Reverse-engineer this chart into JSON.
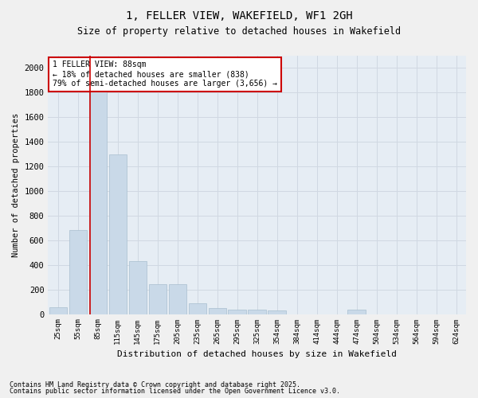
{
  "title": "1, FELLER VIEW, WAKEFIELD, WF1 2GH",
  "subtitle": "Size of property relative to detached houses in Wakefield",
  "xlabel": "Distribution of detached houses by size in Wakefield",
  "ylabel": "Number of detached properties",
  "categories": [
    "25sqm",
    "55sqm",
    "85sqm",
    "115sqm",
    "145sqm",
    "175sqm",
    "205sqm",
    "235sqm",
    "265sqm",
    "295sqm",
    "325sqm",
    "354sqm",
    "384sqm",
    "414sqm",
    "444sqm",
    "474sqm",
    "504sqm",
    "534sqm",
    "564sqm",
    "594sqm",
    "624sqm"
  ],
  "values": [
    55,
    685,
    1820,
    1295,
    430,
    240,
    240,
    85,
    50,
    35,
    35,
    30,
    0,
    0,
    0,
    35,
    0,
    0,
    0,
    0,
    0
  ],
  "bar_color": "#c9d9e8",
  "bar_edge_color": "#a8bfcf",
  "grid_color": "#d0d8e2",
  "background_color": "#e6edf4",
  "fig_background": "#f0f0f0",
  "annotation_title": "1 FELLER VIEW: 88sqm",
  "annotation_line1": "← 18% of detached houses are smaller (838)",
  "annotation_line2": "79% of semi-detached houses are larger (3,656) →",
  "annotation_box_color": "#ffffff",
  "annotation_box_edge": "#cc0000",
  "property_line_color": "#cc0000",
  "ylim": [
    0,
    2100
  ],
  "yticks": [
    0,
    200,
    400,
    600,
    800,
    1000,
    1200,
    1400,
    1600,
    1800,
    2000
  ],
  "footnote1": "Contains HM Land Registry data © Crown copyright and database right 2025.",
  "footnote2": "Contains public sector information licensed under the Open Government Licence v3.0."
}
